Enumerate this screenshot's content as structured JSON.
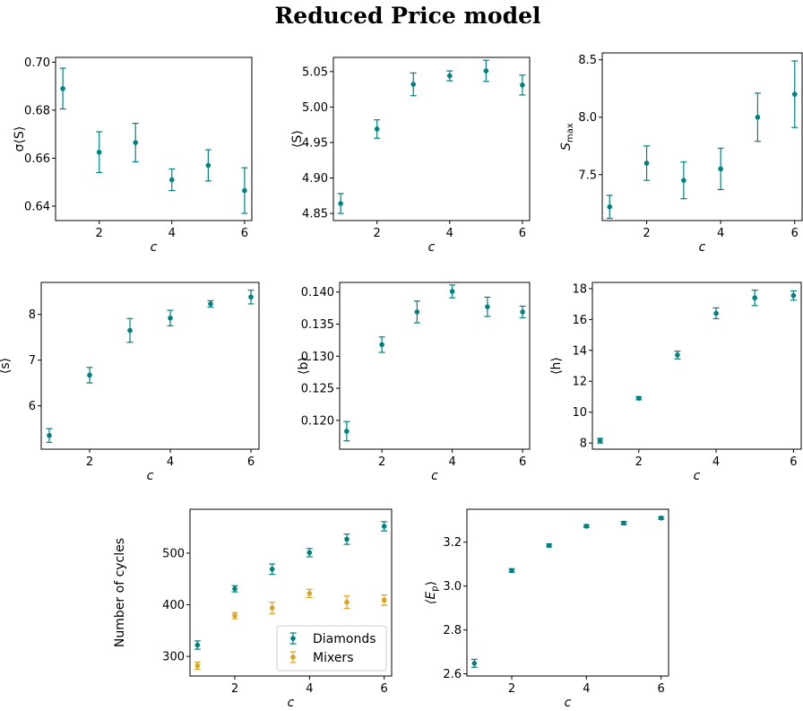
{
  "figure": {
    "title": "Reduced Price model",
    "colors": {
      "diamonds": "#00807f",
      "mixers": "#d9a521"
    }
  },
  "chart_data": [
    {
      "id": "sigma-S",
      "type": "scatter",
      "xlabel": "c",
      "ylabel": "σ⟨S⟩",
      "xlim": [
        0.8,
        6.2
      ],
      "ylim": [
        0.634,
        0.702
      ],
      "xticks": [
        2,
        4,
        6
      ],
      "yticks": [
        0.64,
        0.66,
        0.68,
        0.7
      ],
      "ytick_labels": [
        "0.64",
        "0.66",
        "0.68",
        "0.70"
      ],
      "series": [
        {
          "x": [
            1,
            2,
            3,
            4,
            5,
            6
          ],
          "y": [
            0.689,
            0.6625,
            0.6665,
            0.651,
            0.657,
            0.6465
          ],
          "err": [
            0.0085,
            0.0085,
            0.008,
            0.0045,
            0.0065,
            0.0095
          ],
          "color": "#00807f"
        }
      ]
    },
    {
      "id": "mean-S",
      "type": "scatter",
      "xlabel": "c",
      "ylabel": "⟨S⟩",
      "xlim": [
        0.8,
        6.2
      ],
      "ylim": [
        4.84,
        5.07
      ],
      "xticks": [
        2,
        4,
        6
      ],
      "yticks": [
        4.85,
        4.9,
        4.95,
        5.0,
        5.05
      ],
      "ytick_labels": [
        "4.85",
        "4.90",
        "4.95",
        "5.00",
        "5.05"
      ],
      "series": [
        {
          "x": [
            1,
            2,
            3,
            4,
            5,
            6
          ],
          "y": [
            4.864,
            4.969,
            5.032,
            5.044,
            5.051,
            5.031
          ],
          "err": [
            0.014,
            0.013,
            0.016,
            0.007,
            0.015,
            0.014
          ],
          "color": "#00807f"
        }
      ]
    },
    {
      "id": "S-max",
      "type": "scatter",
      "xlabel": "c",
      "ylabel": "S",
      "ylabel_sub": "max",
      "xlim": [
        0.8,
        6.2
      ],
      "ylim": [
        7.1,
        8.56
      ],
      "xticks": [
        2,
        4,
        6
      ],
      "yticks": [
        7.5,
        8.0,
        8.5
      ],
      "ytick_labels": [
        "7.5",
        "8.0",
        "8.5"
      ],
      "series": [
        {
          "x": [
            1,
            2,
            3,
            4,
            5,
            6
          ],
          "y": [
            7.22,
            7.6,
            7.45,
            7.55,
            8.0,
            8.2
          ],
          "err": [
            0.1,
            0.15,
            0.16,
            0.18,
            0.21,
            0.29
          ],
          "color": "#00807f"
        }
      ]
    },
    {
      "id": "mean-s",
      "type": "scatter",
      "xlabel": "c",
      "ylabel": "⟨s⟩",
      "xlim": [
        0.8,
        6.2
      ],
      "ylim": [
        5.05,
        8.7
      ],
      "xticks": [
        2,
        4,
        6
      ],
      "yticks": [
        6,
        7,
        8
      ],
      "ytick_labels": [
        "6",
        "7",
        "8"
      ],
      "series": [
        {
          "x": [
            1,
            2,
            3,
            4,
            5,
            6
          ],
          "y": [
            5.35,
            6.67,
            7.65,
            7.92,
            8.23,
            8.38
          ],
          "err": [
            0.15,
            0.17,
            0.26,
            0.17,
            0.07,
            0.15
          ],
          "color": "#00807f"
        }
      ]
    },
    {
      "id": "mean-b",
      "type": "scatter",
      "xlabel": "c",
      "ylabel": "⟨b⟩",
      "xlim": [
        0.8,
        6.2
      ],
      "ylim": [
        0.1155,
        0.1415
      ],
      "xticks": [
        2,
        4,
        6
      ],
      "yticks": [
        0.12,
        0.125,
        0.13,
        0.135,
        0.14
      ],
      "ytick_labels": [
        "0.120",
        "0.125",
        "0.130",
        "0.135",
        "0.140"
      ],
      "series": [
        {
          "x": [
            1,
            2,
            3,
            4,
            5,
            6
          ],
          "y": [
            0.1183,
            0.1318,
            0.1369,
            0.1401,
            0.1377,
            0.1369
          ],
          "err": [
            0.0015,
            0.0012,
            0.0017,
            0.001,
            0.0015,
            0.0009
          ],
          "color": "#00807f"
        }
      ]
    },
    {
      "id": "mean-h",
      "type": "scatter",
      "xlabel": "c",
      "ylabel": "⟨h⟩",
      "xlim": [
        0.8,
        6.2
      ],
      "ylim": [
        7.6,
        18.4
      ],
      "xticks": [
        2,
        4,
        6
      ],
      "yticks": [
        8,
        10,
        12,
        14,
        16,
        18
      ],
      "ytick_labels": [
        "8",
        "10",
        "12",
        "14",
        "16",
        "18"
      ],
      "series": [
        {
          "x": [
            1,
            2,
            3,
            4,
            5,
            6
          ],
          "y": [
            8.15,
            10.9,
            13.7,
            16.4,
            17.4,
            17.55
          ],
          "err": [
            0.15,
            0.1,
            0.25,
            0.35,
            0.5,
            0.3
          ],
          "color": "#00807f"
        }
      ]
    },
    {
      "id": "cycles",
      "type": "scatter",
      "xlabel": "c",
      "ylabel": "Number of cycles",
      "xlim": [
        0.8,
        6.2
      ],
      "ylim": [
        262,
        585
      ],
      "xticks": [
        2,
        4,
        6
      ],
      "yticks": [
        300,
        400,
        500
      ],
      "ytick_labels": [
        "300",
        "400",
        "500"
      ],
      "legend": {
        "position": "lower right"
      },
      "series": [
        {
          "name": "Diamonds",
          "x": [
            1,
            2,
            3,
            4,
            5,
            6
          ],
          "y": [
            322,
            431,
            469,
            501,
            527,
            552
          ],
          "err": [
            8,
            6,
            10,
            8,
            10,
            9
          ],
          "color": "#00807f"
        },
        {
          "name": "Mixers",
          "x": [
            1,
            2,
            3,
            4,
            5,
            6
          ],
          "y": [
            282,
            379,
            394,
            422,
            405,
            409
          ],
          "err": [
            7,
            6,
            11,
            8,
            12,
            10
          ],
          "color": "#d9a521"
        }
      ]
    },
    {
      "id": "mean-Ep",
      "type": "scatter",
      "xlabel": "c",
      "ylabel": "⟨E",
      "ylabel_sub": "p",
      "ylabel_end": "⟩",
      "xlim": [
        0.8,
        6.2
      ],
      "ylim": [
        2.59,
        3.35
      ],
      "xticks": [
        2,
        4,
        6
      ],
      "yticks": [
        2.6,
        2.8,
        3.0,
        3.2
      ],
      "ytick_labels": [
        "2.6",
        "2.8",
        "3.0",
        "3.2"
      ],
      "series": [
        {
          "x": [
            1,
            2,
            3,
            4,
            5,
            6
          ],
          "y": [
            2.648,
            3.071,
            3.185,
            3.273,
            3.287,
            3.31
          ],
          "err": [
            0.018,
            0.008,
            0.007,
            0.006,
            0.007,
            0.006
          ],
          "color": "#00807f"
        }
      ]
    }
  ]
}
